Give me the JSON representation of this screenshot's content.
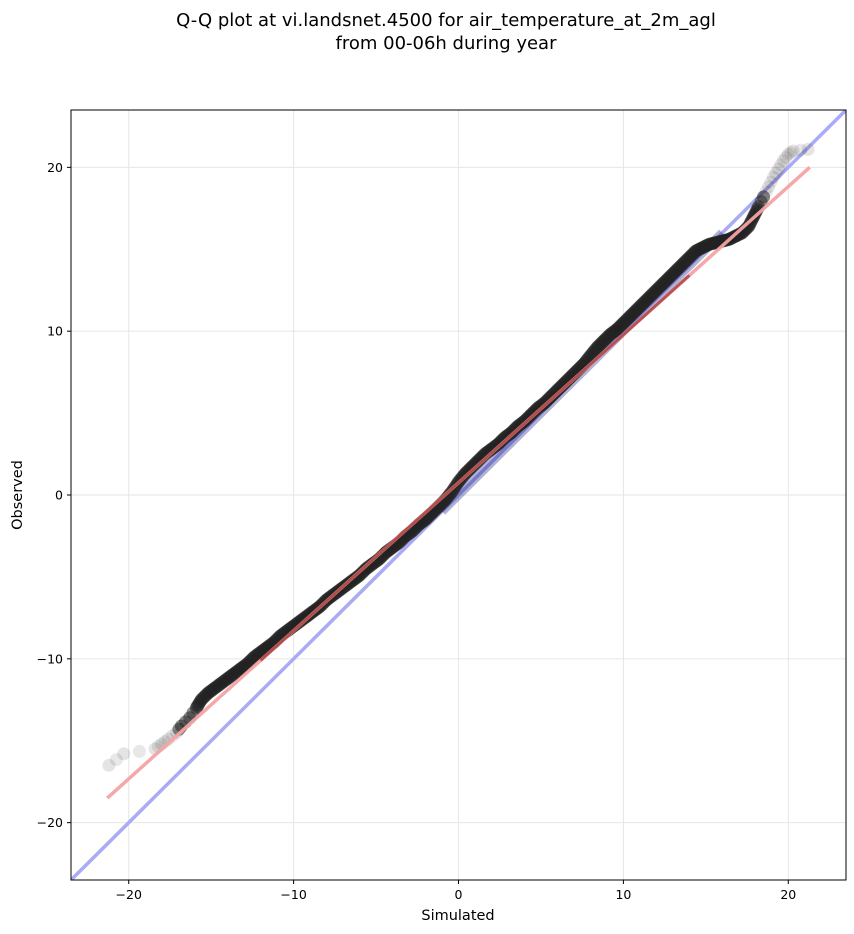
{
  "chart_data": {
    "type": "scatter",
    "title_line1": "Q-Q plot at vi.landsnet.4500 for air_temperature_at_2m_agl",
    "title_line2": "from 00-06h during year",
    "xlabel": "Simulated",
    "ylabel": "Observed",
    "xlim": [
      -23.5,
      23.5
    ],
    "ylim": [
      -23.5,
      23.5
    ],
    "xticks": [
      -20,
      -10,
      0,
      10,
      20
    ],
    "yticks": [
      -20,
      -10,
      0,
      10,
      20
    ],
    "xtick_labels": [
      "−20",
      "−10",
      "0",
      "10",
      "20"
    ],
    "ytick_labels": [
      "−20",
      "−10",
      "0",
      "10",
      "20"
    ],
    "grid": true,
    "colors": {
      "points": "#222222",
      "identity_line": "#aaaaf5",
      "fit_line": "#f5a3a3",
      "points_blue_tint": "#1a237e",
      "points_red_tint": "#7a0000"
    },
    "identity_line": {
      "x": [
        -23.5,
        23.5
      ],
      "y": [
        -23.5,
        23.5
      ]
    },
    "fit_line": {
      "x": [
        -21.3,
        21.3
      ],
      "y": [
        -18.5,
        20.0
      ]
    },
    "quantiles_sim": [
      -21.2,
      -20.3,
      -18.4,
      -18.0,
      -17.6,
      -17.1,
      -16.8,
      -16.3,
      -15.9,
      -15.6,
      -15.2,
      -14.8,
      -14.4,
      -14.0,
      -13.6,
      -13.2,
      -12.8,
      -12.4,
      -12.0,
      -11.6,
      -11.2,
      -10.8,
      -10.4,
      -10.0,
      -9.6,
      -9.2,
      -8.8,
      -8.4,
      -8.0,
      -7.6,
      -7.2,
      -6.8,
      -6.4,
      -6.0,
      -5.6,
      -5.2,
      -4.8,
      -4.4,
      -4.0,
      -3.6,
      -3.2,
      -2.8,
      -2.4,
      -2.0,
      -1.6,
      -1.2,
      -0.8,
      -0.4,
      0.0,
      0.4,
      0.8,
      1.2,
      1.6,
      2.0,
      2.4,
      2.8,
      3.2,
      3.6,
      4.0,
      4.4,
      4.8,
      5.2,
      5.6,
      6.0,
      6.4,
      6.8,
      7.2,
      7.6,
      8.0,
      8.4,
      8.8,
      9.2,
      9.6,
      10.0,
      10.4,
      10.8,
      11.2,
      11.6,
      12.0,
      12.4,
      12.8,
      13.2,
      13.6,
      14.0,
      14.4,
      14.8,
      15.2,
      15.6,
      16.0,
      16.4,
      16.8,
      17.2,
      17.6,
      17.9,
      18.2,
      18.5,
      18.8,
      19.1,
      19.4,
      19.7,
      20.0,
      20.3,
      21.2
    ],
    "quantiles_obs": [
      -16.5,
      -15.8,
      -15.5,
      -15.2,
      -14.9,
      -14.5,
      -14.1,
      -13.6,
      -13.0,
      -12.5,
      -12.1,
      -11.8,
      -11.5,
      -11.2,
      -10.9,
      -10.6,
      -10.3,
      -9.9,
      -9.6,
      -9.3,
      -9.0,
      -8.6,
      -8.3,
      -8.0,
      -7.7,
      -7.4,
      -7.1,
      -6.8,
      -6.4,
      -6.1,
      -5.8,
      -5.5,
      -5.2,
      -4.9,
      -4.5,
      -4.2,
      -3.9,
      -3.5,
      -3.2,
      -2.9,
      -2.5,
      -2.2,
      -1.8,
      -1.5,
      -1.1,
      -0.7,
      -0.3,
      0.2,
      0.8,
      1.3,
      1.7,
      2.1,
      2.5,
      2.8,
      3.1,
      3.5,
      3.8,
      4.2,
      4.5,
      4.9,
      5.3,
      5.6,
      6.0,
      6.4,
      6.8,
      7.2,
      7.6,
      8.0,
      8.5,
      9.0,
      9.4,
      9.8,
      10.1,
      10.5,
      10.9,
      11.3,
      11.7,
      12.1,
      12.5,
      12.9,
      13.3,
      13.7,
      14.1,
      14.5,
      14.9,
      15.1,
      15.3,
      15.4,
      15.5,
      15.6,
      15.8,
      16.0,
      16.4,
      17.0,
      17.6,
      18.2,
      18.8,
      19.4,
      19.9,
      20.4,
      20.8,
      21.0,
      21.1
    ]
  }
}
